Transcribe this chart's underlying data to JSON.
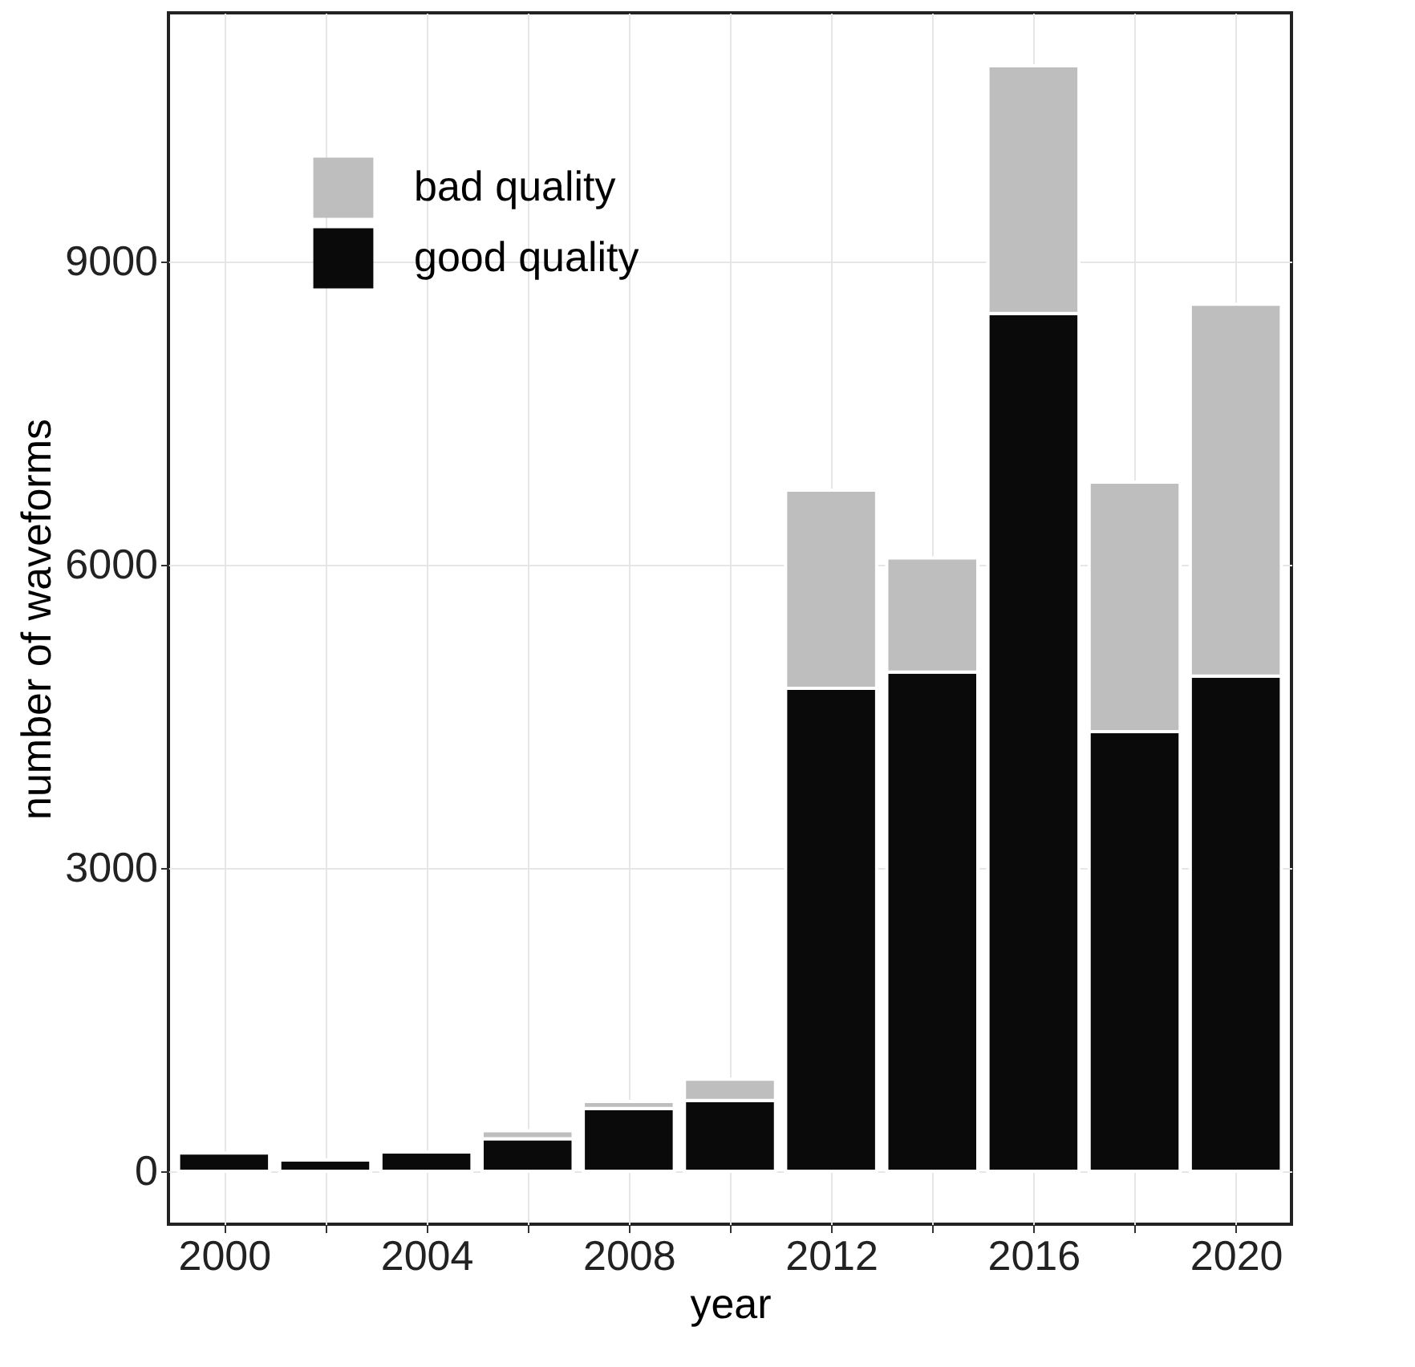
{
  "chart_data": {
    "type": "bar",
    "stacked": true,
    "xlabel": "year",
    "ylabel": "number of waveforms",
    "x": [
      2000,
      2002,
      2004,
      2006,
      2008,
      2010,
      2012,
      2014,
      2016,
      2018,
      2020
    ],
    "series": [
      {
        "name": "good quality",
        "color": "#0a0a0a",
        "values": [
          180,
          110,
          190,
          320,
          620,
          700,
          4780,
          4940,
          8490,
          4350,
          4900
        ]
      },
      {
        "name": "bad quality",
        "color": "#bebebe",
        "values": [
          null,
          null,
          null,
          80,
          70,
          210,
          1960,
          1130,
          2450,
          2470,
          3680
        ]
      }
    ],
    "xlim": [
      1998.9,
      2021.1
    ],
    "xticks": [
      2000,
      {
        "value": 2002,
        "label": null
      },
      2004,
      {
        "value": 2006,
        "label": null
      },
      2008,
      {
        "value": 2010,
        "label": null
      },
      2012,
      {
        "value": 2014,
        "label": null
      },
      2016,
      {
        "value": 2018,
        "label": null
      },
      2020
    ],
    "ylim": [
      -525,
      11465
    ],
    "yticks": [
      0,
      3000,
      6000,
      9000
    ],
    "grid": true,
    "legend": "top left"
  }
}
